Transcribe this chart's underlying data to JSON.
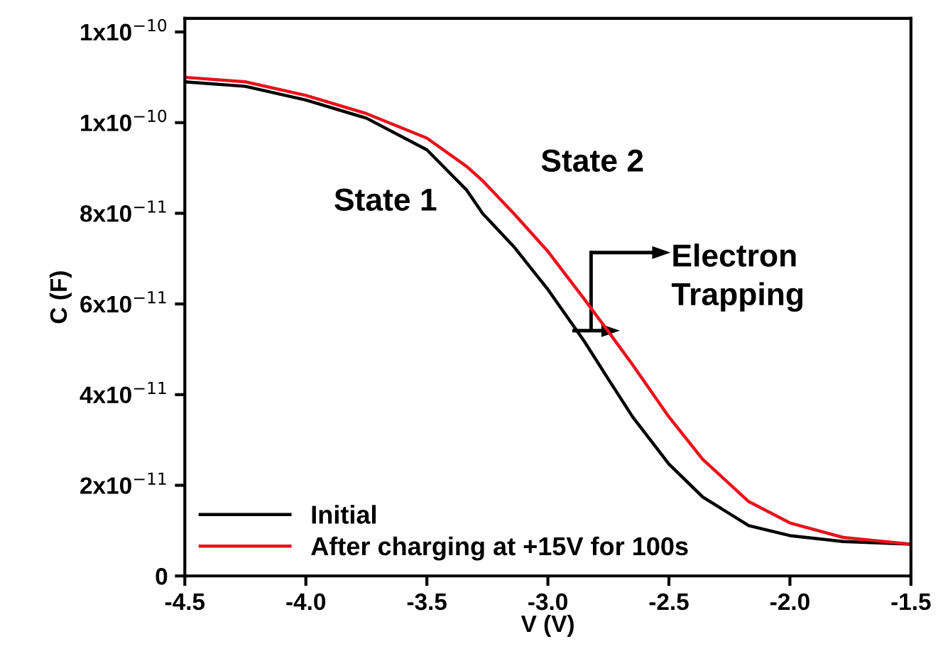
{
  "chart_data": {
    "type": "line",
    "xlabel": "V (V)",
    "ylabel": "C (F)",
    "xlim": [
      -4.5,
      -1.5
    ],
    "xticks": [
      {
        "value": -4.5,
        "label": "-4.5"
      },
      {
        "value": -4.0,
        "label": "-4.0"
      },
      {
        "value": -3.5,
        "label": "-3.5"
      },
      {
        "value": -3.0,
        "label": "-3.0"
      },
      {
        "value": -2.5,
        "label": "-2.5"
      },
      {
        "value": -2.0,
        "label": "-2.0"
      },
      {
        "value": -1.5,
        "label": "-1.5"
      }
    ],
    "ylim": [
      0,
      1.23e-10
    ],
    "yticks": [
      0,
      {
        "value": 2e-11,
        "label": "2x10$^{−11}$"
      },
      {
        "value": 4e-11,
        "label": "4x10$^{−11}$"
      },
      {
        "value": 6e-11,
        "label": "6x10$^{−11}$"
      },
      {
        "value": 8e-11,
        "label": "8x10$^{−11}$"
      },
      {
        "value": 1e-10,
        "label": "1x10$^{−10}$"
      },
      {
        "value": 1.2e-10,
        "label": "1x10$^{−10}$"
      }
    ],
    "legend": "bottom left",
    "grid": false,
    "marker": "none",
    "line_style": "solid",
    "series": [
      {
        "name": "Initial",
        "color": "#000000",
        "x": [
          -4.5,
          -4.25,
          -4.0,
          -3.75,
          -3.5,
          -3.335,
          -3.27,
          -3.14,
          -3.0,
          -2.85,
          -2.75,
          -2.65,
          -2.5,
          -2.36,
          -2.17,
          -2.0,
          -1.78,
          -1.5
        ],
        "values": [
          1.09e-10,
          1.08e-10,
          1.05e-10,
          1.01e-10,
          9.4e-11,
          8.51e-11,
          8e-11,
          7.26e-11,
          6.32e-11,
          5.18e-11,
          4.34e-11,
          3.51e-11,
          2.47e-11,
          1.74e-11,
          1.11e-11,
          8.9e-12,
          7.6e-12,
          7e-12
        ]
      },
      {
        "name": "After charging at +15V for 100s",
        "color": "#e8121b",
        "x": [
          -4.5,
          -4.25,
          -4.0,
          -3.75,
          -3.5,
          -3.335,
          -3.27,
          -3.14,
          -3.0,
          -2.85,
          -2.75,
          -2.65,
          -2.5,
          -2.36,
          -2.17,
          -2.0,
          -1.78,
          -1.5
        ],
        "values": [
          1.1e-10,
          1.09e-10,
          1.06e-10,
          1.02e-10,
          9.66e-11,
          9.03e-11,
          8.72e-11,
          7.99e-11,
          7.16e-11,
          6.11e-11,
          5.39e-11,
          4.66e-11,
          3.51e-11,
          2.57e-11,
          1.64e-11,
          1.17e-11,
          8.5e-12,
          7e-12
        ]
      }
    ],
    "annotations": [
      "State 1",
      "State 2",
      "Electron\nTrapping"
    ]
  }
}
